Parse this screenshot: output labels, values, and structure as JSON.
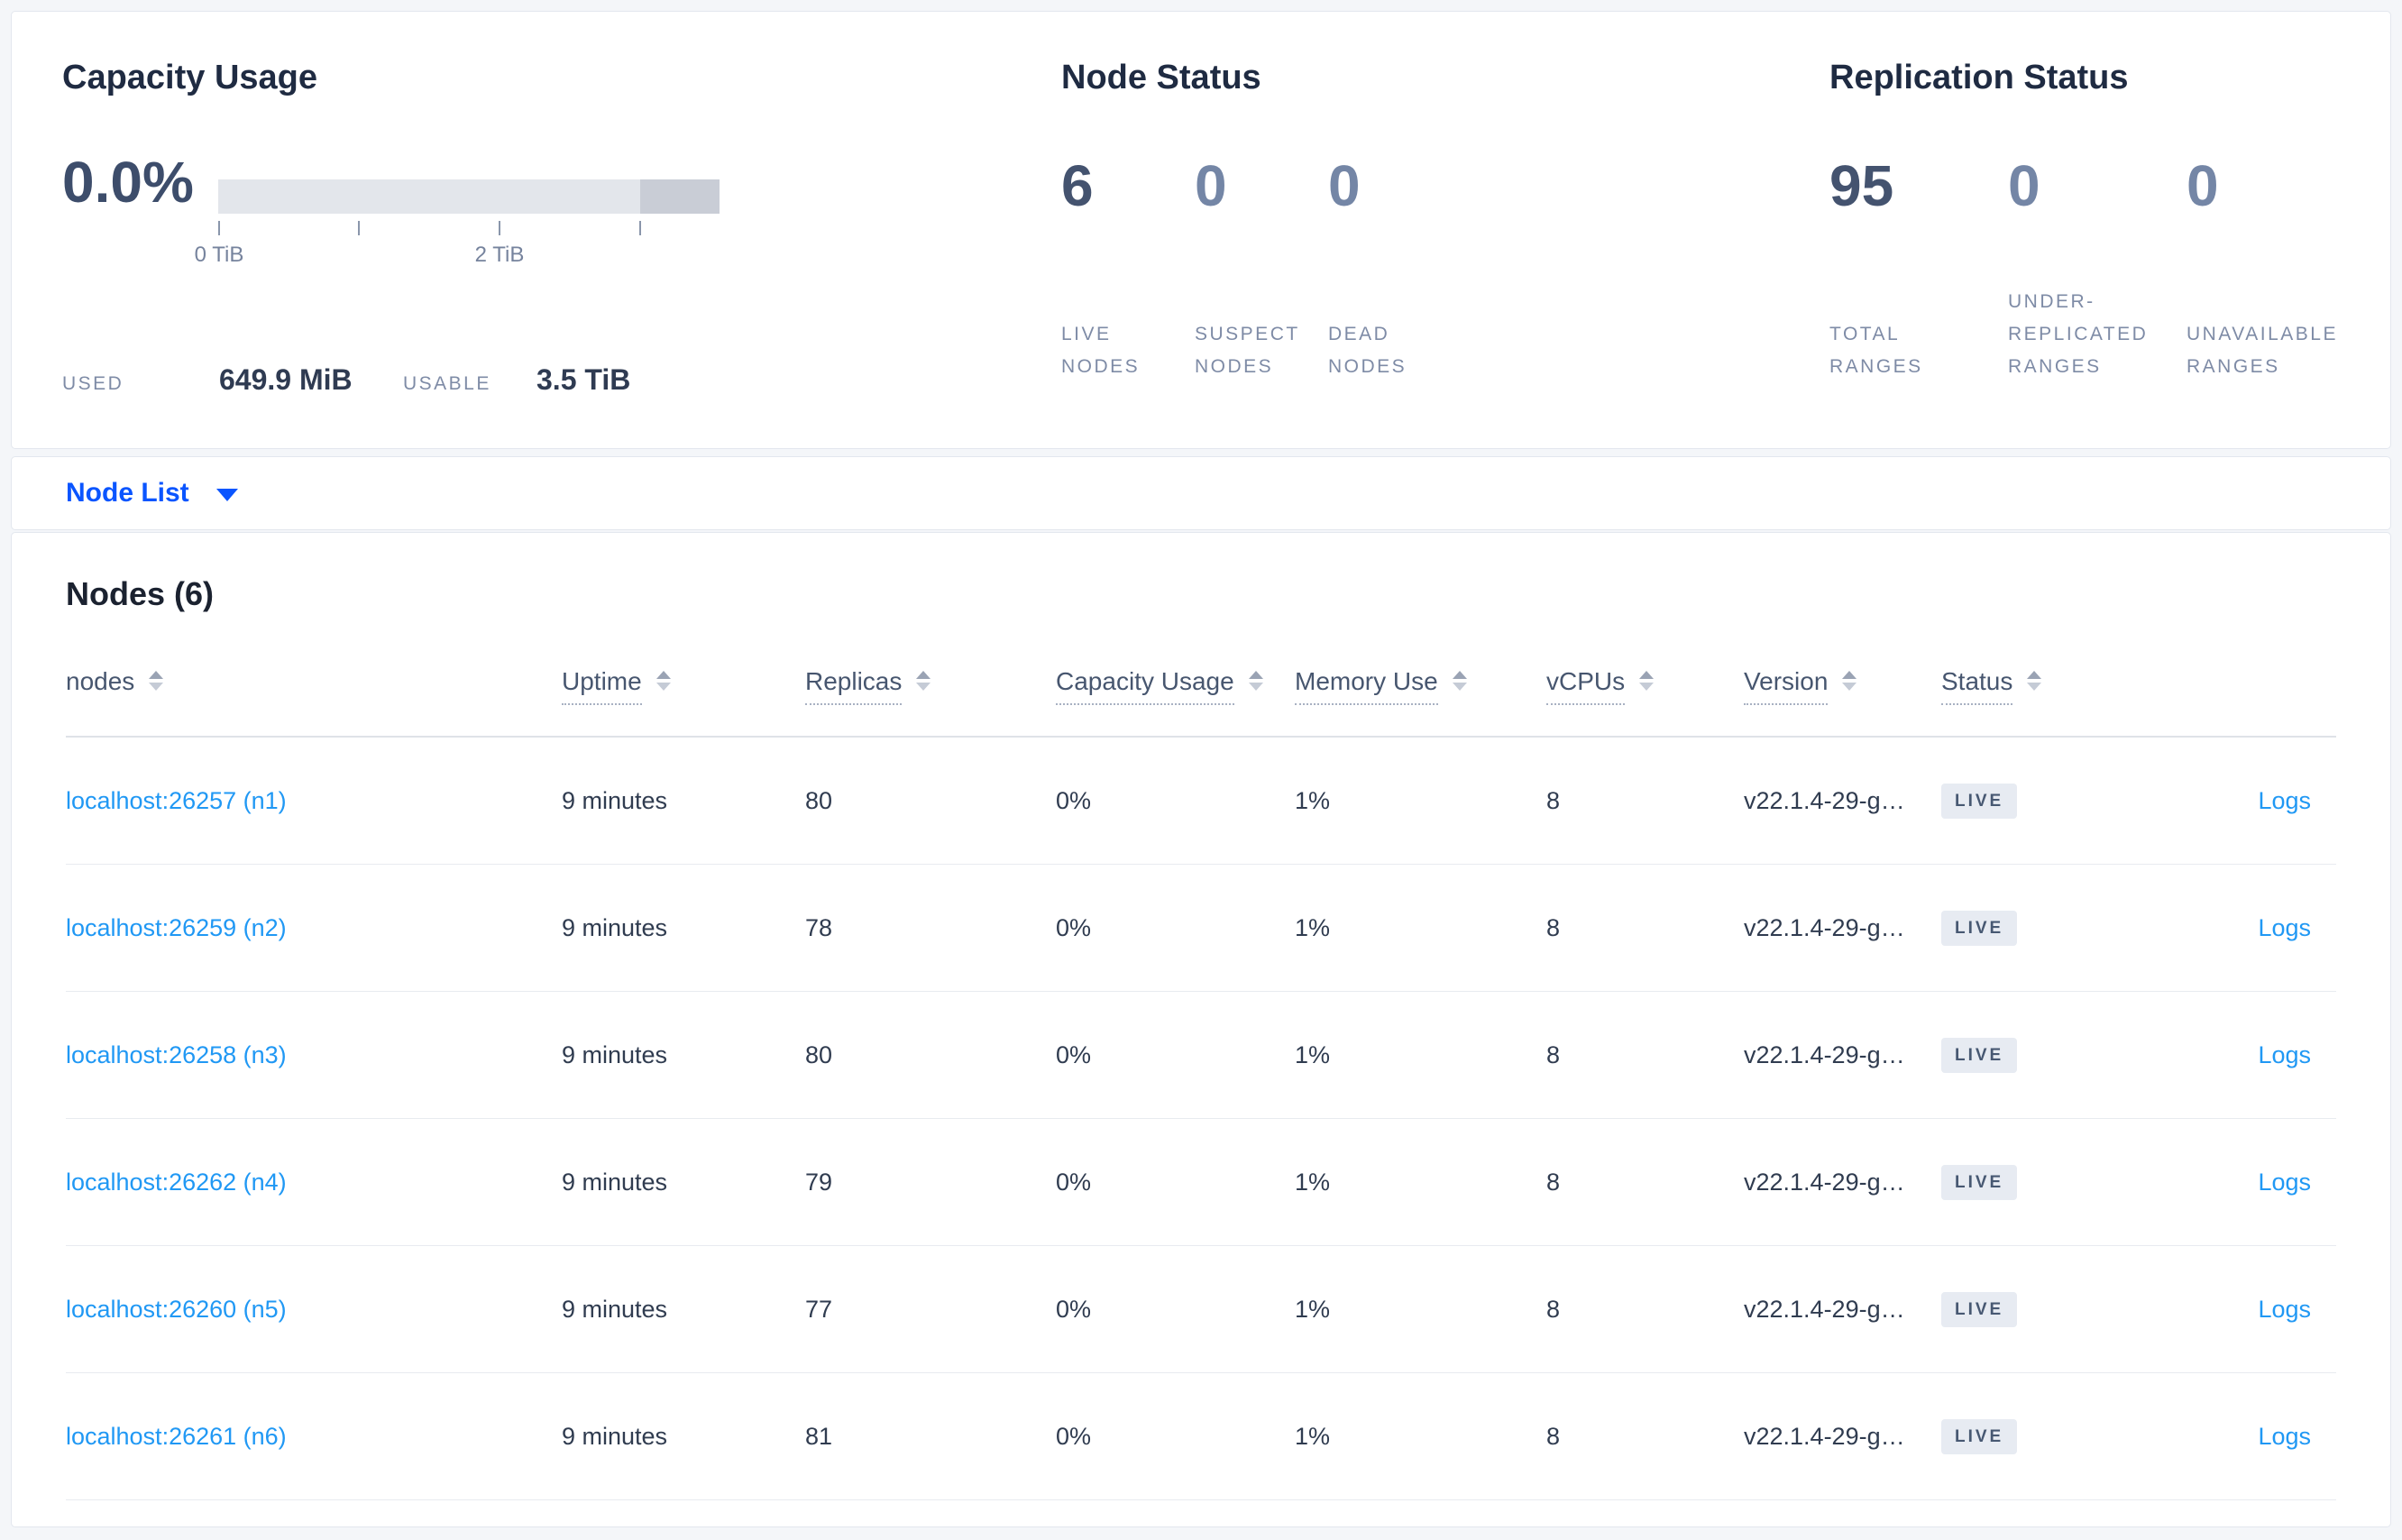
{
  "summary": {
    "capacity": {
      "title": "Capacity Usage",
      "used_percent": "0.0%",
      "used_label": "USED",
      "used_value": "649.9 MiB",
      "usable_label": "USABLE",
      "usable_value": "3.5 TiB",
      "tick_labels": [
        "0 TiB",
        "2 TiB"
      ],
      "gauge": {
        "type": "bar",
        "percent_used": 0.0,
        "used": "649.9 MiB",
        "usable": "3.5 TiB",
        "axis_ticks_tib": [
          0,
          1,
          2,
          3
        ],
        "bar_extent_tib": 3.5,
        "darker_segment_tib": [
          3.0,
          3.5
        ]
      }
    },
    "node_status": {
      "title": "Node Status",
      "stats": [
        {
          "value": "6",
          "label": "LIVE NODES",
          "emphasis": "dark"
        },
        {
          "value": "0",
          "label": "SUSPECT NODES",
          "emphasis": "light"
        },
        {
          "value": "0",
          "label": "DEAD NODES",
          "emphasis": "light"
        }
      ]
    },
    "replication": {
      "title": "Replication Status",
      "stats": [
        {
          "value": "95",
          "label": "TOTAL RANGES",
          "emphasis": "dark"
        },
        {
          "value": "0",
          "label": "UNDER-REPLICATED RANGES",
          "emphasis": "light"
        },
        {
          "value": "0",
          "label": "UNAVAILABLE RANGES",
          "emphasis": "light"
        }
      ]
    }
  },
  "selector": {
    "label": "Node List"
  },
  "nodes_table": {
    "title": "Nodes (6)",
    "columns": [
      {
        "label": "nodes",
        "dotted": false
      },
      {
        "label": "Uptime",
        "dotted": true
      },
      {
        "label": "Replicas",
        "dotted": true
      },
      {
        "label": "Capacity Usage",
        "dotted": true
      },
      {
        "label": "Memory Use",
        "dotted": true
      },
      {
        "label": "vCPUs",
        "dotted": true
      },
      {
        "label": "Version",
        "dotted": true
      },
      {
        "label": "Status",
        "dotted": true
      }
    ],
    "rows": [
      {
        "node": "localhost:26257 (n1)",
        "uptime": "9 minutes",
        "replicas": "80",
        "capacity_usage": "0%",
        "memory_use": "1%",
        "vcpus": "8",
        "version": "v22.1.4-29-g…",
        "status": "LIVE",
        "logs_label": "Logs"
      },
      {
        "node": "localhost:26259 (n2)",
        "uptime": "9 minutes",
        "replicas": "78",
        "capacity_usage": "0%",
        "memory_use": "1%",
        "vcpus": "8",
        "version": "v22.1.4-29-g…",
        "status": "LIVE",
        "logs_label": "Logs"
      },
      {
        "node": "localhost:26258 (n3)",
        "uptime": "9 minutes",
        "replicas": "80",
        "capacity_usage": "0%",
        "memory_use": "1%",
        "vcpus": "8",
        "version": "v22.1.4-29-g…",
        "status": "LIVE",
        "logs_label": "Logs"
      },
      {
        "node": "localhost:26262 (n4)",
        "uptime": "9 minutes",
        "replicas": "79",
        "capacity_usage": "0%",
        "memory_use": "1%",
        "vcpus": "8",
        "version": "v22.1.4-29-g…",
        "status": "LIVE",
        "logs_label": "Logs"
      },
      {
        "node": "localhost:26260 (n5)",
        "uptime": "9 minutes",
        "replicas": "77",
        "capacity_usage": "0%",
        "memory_use": "1%",
        "vcpus": "8",
        "version": "v22.1.4-29-g…",
        "status": "LIVE",
        "logs_label": "Logs"
      },
      {
        "node": "localhost:26261 (n6)",
        "uptime": "9 minutes",
        "replicas": "81",
        "capacity_usage": "0%",
        "memory_use": "1%",
        "vcpus": "8",
        "version": "v22.1.4-29-g…",
        "status": "LIVE",
        "logs_label": "Logs"
      }
    ]
  },
  "colors": {
    "accent_blue": "#0a55ff",
    "link_blue": "#2098f4",
    "badge_bg": "#e7ebf2",
    "badge_text": "#475872",
    "gauge_light": "#e3e6eb",
    "gauge_dark": "#c9cdd6",
    "stat_dark": "#44536f",
    "stat_light": "#7486a6",
    "page_bg": "#f4f6f9"
  }
}
